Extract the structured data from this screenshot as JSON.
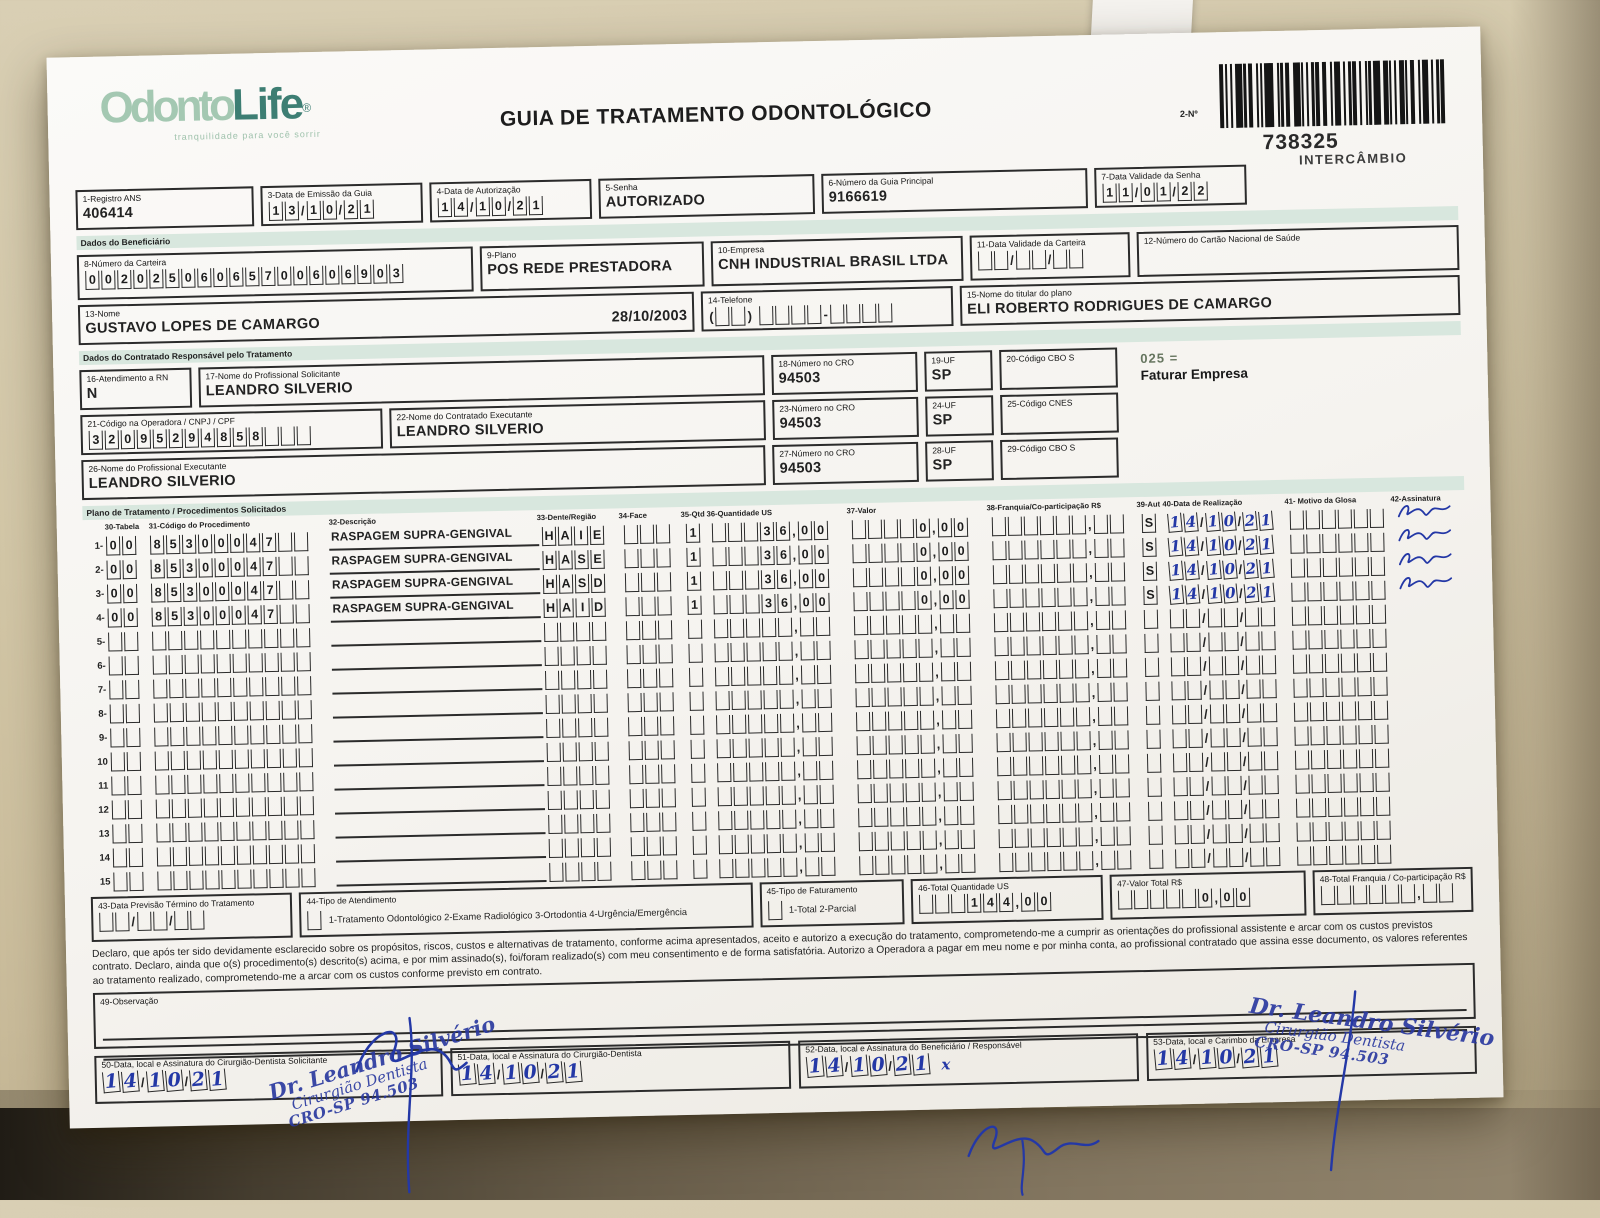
{
  "colors": {
    "logo_green": "#a4c8b2",
    "logo_teal": "#3d7e73",
    "band_mint": "#d8e7de",
    "pen_blue": "#2438a6",
    "ink": "#2b2b2b"
  },
  "brand": {
    "part1": "Odonto",
    "part2": "Life",
    "reg": "®",
    "tagline": "tranquilidade para você sorrir"
  },
  "header": {
    "title": "GUIA DE TRATAMENTO ODONTOLÓGICO",
    "barcode_label": "2-Nº",
    "number": "738325",
    "number_sub": "INTERCÂMBIO"
  },
  "top_fields": {
    "registro_ans": {
      "label": "1-Registro ANS",
      "value": "406414"
    },
    "data_emissao": {
      "label": "3-Data de Emissão da Guia",
      "value": "13/10/21"
    },
    "data_autorizacao": {
      "label": "4-Data de Autorização",
      "value": "14/10/21"
    },
    "senha": {
      "label": "5-Senha",
      "value": "AUTORIZADO"
    },
    "guia_principal": {
      "label": "6-Número da Guia Principal",
      "value": "9166619"
    },
    "validade_senha": {
      "label": "7-Data Validade da Senha",
      "value": "11/01/22"
    }
  },
  "sections": {
    "beneficiario": "Dados do Beneficiário",
    "contratado": "Dados do Contratado Responsável pelo Tratamento",
    "plano": "Plano de Tratamento / Procedimentos Solicitados"
  },
  "beneficiario": {
    "carteira": {
      "label": "8-Número da Carteira",
      "value": "00202506065700606903"
    },
    "plano": {
      "label": "9-Plano",
      "value": "POS REDE PRESTADORA"
    },
    "empresa": {
      "label": "10-Empresa",
      "value": "CNH INDUSTRIAL BRASIL LTDA"
    },
    "validade_carteira": {
      "label": "11-Data Validade da Carteira",
      "value": "__/__/__"
    },
    "cartao_nacional": {
      "label": "12-Número do Cartão Nacional de Saúde",
      "value": ""
    },
    "nome": {
      "label": "13-Nome",
      "value": "GUSTAVO LOPES DE CAMARGO",
      "nascimento": "28/10/2003"
    },
    "telefone": {
      "label": "14-Telefone",
      "value": "(__) ____-____"
    },
    "titular": {
      "label": "15-Nome do titular do plano",
      "value": "ELI ROBERTO RODRIGUES DE CAMARGO"
    }
  },
  "contratado": {
    "atendimento_rn": {
      "label": "16-Atendimento a RN",
      "value": "N"
    },
    "prof_solicitante": {
      "label": "17-Nome do Profissional Solicitante",
      "value": "LEANDRO SILVERIO"
    },
    "cro18": {
      "label": "18-Número no CRO",
      "value": "94503"
    },
    "uf19": {
      "label": "19-UF",
      "value": "SP"
    },
    "cbo20": {
      "label": "20-Código CBO S",
      "value": ""
    },
    "nota_faturamento": {
      "codigo": "025 =",
      "texto": "Faturar Empresa"
    },
    "codigo_operadora": {
      "label": "21-Código na Operadora / CNPJ / CPF",
      "value": "32095294858___"
    },
    "contratado_executante": {
      "label": "22-Nome do Contratado Executante",
      "value": "LEANDRO SILVERIO"
    },
    "cro23": {
      "label": "23-Número no CRO",
      "value": "94503"
    },
    "uf24": {
      "label": "24-UF",
      "value": "SP"
    },
    "cnes25": {
      "label": "25-Código CNES",
      "value": ""
    },
    "prof_executante": {
      "label": "26-Nome do Profissional Executante",
      "value": "LEANDRO SILVERIO"
    },
    "cro27": {
      "label": "27-Número no CRO",
      "value": "94503"
    },
    "uf28": {
      "label": "28-UF",
      "value": "SP"
    },
    "cbo29": {
      "label": "29-Código CBO S",
      "value": ""
    }
  },
  "plan": {
    "headers": [
      "30-Tabela",
      "31-Código do Procedimento",
      "32-Descrição",
      "33-Dente/Região",
      "34-Face",
      "35-Qtd",
      "36-Quantidade US",
      "37-Valor",
      "38-Franquia/Co-participação R$",
      "39-Aut",
      "40-Data de Realização",
      "41- Motivo da Glosa",
      "42-Assinatura"
    ],
    "rows": [
      {
        "n": "1-",
        "tab": "00",
        "cod": "85300047__",
        "desc": "RASPAGEM SUPRA-GENGIVAL",
        "dente": "HAIE",
        "face": "___",
        "qtd": "1",
        "qus": "___36,00",
        "val": "____0,00",
        "fra": "______,__",
        "aut": "S",
        "dt": "14/10/21",
        "glo": "______",
        "signed": true
      },
      {
        "n": "2-",
        "tab": "00",
        "cod": "85300047__",
        "desc": "RASPAGEM SUPRA-GENGIVAL",
        "dente": "HASE",
        "face": "___",
        "qtd": "1",
        "qus": "___36,00",
        "val": "____0,00",
        "fra": "______,__",
        "aut": "S",
        "dt": "14/10/21",
        "glo": "______",
        "signed": true
      },
      {
        "n": "3-",
        "tab": "00",
        "cod": "85300047__",
        "desc": "RASPAGEM SUPRA-GENGIVAL",
        "dente": "HASD",
        "face": "___",
        "qtd": "1",
        "qus": "___36,00",
        "val": "____0,00",
        "fra": "______,__",
        "aut": "S",
        "dt": "14/10/21",
        "glo": "______",
        "signed": true
      },
      {
        "n": "4-",
        "tab": "00",
        "cod": "85300047__",
        "desc": "RASPAGEM SUPRA-GENGIVAL",
        "dente": "HAID",
        "face": "___",
        "qtd": "1",
        "qus": "___36,00",
        "val": "____0,00",
        "fra": "______,__",
        "aut": "S",
        "dt": "14/10/21",
        "glo": "______",
        "signed": true
      },
      {
        "n": "5-",
        "tab": "__",
        "cod": "__________",
        "desc": "",
        "dente": "____",
        "face": "___",
        "qtd": "_",
        "qus": "_____,__",
        "val": "_____,__",
        "fra": "______,__",
        "aut": "_",
        "dt": "__/__/__",
        "glo": "______",
        "signed": false
      },
      {
        "n": "6-",
        "tab": "__",
        "cod": "__________",
        "desc": "",
        "dente": "____",
        "face": "___",
        "qtd": "_",
        "qus": "_____,__",
        "val": "_____,__",
        "fra": "______,__",
        "aut": "_",
        "dt": "__/__/__",
        "glo": "______",
        "signed": false
      },
      {
        "n": "7-",
        "tab": "__",
        "cod": "__________",
        "desc": "",
        "dente": "____",
        "face": "___",
        "qtd": "_",
        "qus": "_____,__",
        "val": "_____,__",
        "fra": "______,__",
        "aut": "_",
        "dt": "__/__/__",
        "glo": "______",
        "signed": false
      },
      {
        "n": "8-",
        "tab": "__",
        "cod": "__________",
        "desc": "",
        "dente": "____",
        "face": "___",
        "qtd": "_",
        "qus": "_____,__",
        "val": "_____,__",
        "fra": "______,__",
        "aut": "_",
        "dt": "__/__/__",
        "glo": "______",
        "signed": false
      },
      {
        "n": "9-",
        "tab": "__",
        "cod": "__________",
        "desc": "",
        "dente": "____",
        "face": "___",
        "qtd": "_",
        "qus": "_____,__",
        "val": "_____,__",
        "fra": "______,__",
        "aut": "_",
        "dt": "__/__/__",
        "glo": "______",
        "signed": false
      },
      {
        "n": "10",
        "tab": "__",
        "cod": "__________",
        "desc": "",
        "dente": "____",
        "face": "___",
        "qtd": "_",
        "qus": "_____,__",
        "val": "_____,__",
        "fra": "______,__",
        "aut": "_",
        "dt": "__/__/__",
        "glo": "______",
        "signed": false
      },
      {
        "n": "11",
        "tab": "__",
        "cod": "__________",
        "desc": "",
        "dente": "____",
        "face": "___",
        "qtd": "_",
        "qus": "_____,__",
        "val": "_____,__",
        "fra": "______,__",
        "aut": "_",
        "dt": "__/__/__",
        "glo": "______",
        "signed": false
      },
      {
        "n": "12",
        "tab": "__",
        "cod": "__________",
        "desc": "",
        "dente": "____",
        "face": "___",
        "qtd": "_",
        "qus": "_____,__",
        "val": "_____,__",
        "fra": "______,__",
        "aut": "_",
        "dt": "__/__/__",
        "glo": "______",
        "signed": false
      },
      {
        "n": "13",
        "tab": "__",
        "cod": "__________",
        "desc": "",
        "dente": "____",
        "face": "___",
        "qtd": "_",
        "qus": "_____,__",
        "val": "_____,__",
        "fra": "______,__",
        "aut": "_",
        "dt": "__/__/__",
        "glo": "______",
        "signed": false
      },
      {
        "n": "14",
        "tab": "__",
        "cod": "__________",
        "desc": "",
        "dente": "____",
        "face": "___",
        "qtd": "_",
        "qus": "_____,__",
        "val": "_____,__",
        "fra": "______,__",
        "aut": "_",
        "dt": "__/__/__",
        "glo": "______",
        "signed": false
      },
      {
        "n": "15",
        "tab": "__",
        "cod": "__________",
        "desc": "",
        "dente": "____",
        "face": "___",
        "qtd": "_",
        "qus": "_____,__",
        "val": "_____,__",
        "fra": "______,__",
        "aut": "_",
        "dt": "__/__/__",
        "glo": "______",
        "signed": false
      }
    ]
  },
  "totals": {
    "termino": {
      "label": "43-Data Previsão Término do Tratamento",
      "value": "__/__/__"
    },
    "tipo_atendimento": {
      "label": "44-Tipo de Atendimento",
      "checkbox": "_",
      "options": "1-Tratamento Odontológico  2-Exame Radiológico  3-Ortodontia  4-Urgência/Emergência"
    },
    "tipo_faturamento": {
      "label": "45-Tipo de Faturamento",
      "checkbox": "_",
      "options": "1-Total  2-Parcial"
    },
    "total_us": {
      "label": "46-Total Quantidade US",
      "value": "___144,00"
    },
    "valor_total": {
      "label": "47-Valor Total R$",
      "value": "_____0,00"
    },
    "total_franquia": {
      "label": "48-Total Franquia / Co-participação R$",
      "value": "______,__"
    }
  },
  "declaration": "Declaro, que após ter sido devidamente esclarecido sobre os propósitos, riscos, custos e alternativas de tratamento, conforme acima apresentados, aceito e autorizo a execução do tratamento, comprometendo-me a cumprir as orientações do profissional assistente e arcar com os custos previstos contrato. Declaro, ainda que o(s) procedimento(s) descrito(s) acima, e por mim assinado(s), foi/foram realizado(s) com meu consentimento e de forma satisfatória. Autorizo a Operadora a pagar em meu nome e por minha conta, ao profissional contratado que assina esse documento, os valores referentes ao tratamento realizado, comprometendo-me a arcar com os custos conforme previsto em contrato.",
  "observacao": {
    "label": "49-Observação"
  },
  "stamp": {
    "line1": "Dr. Leandro Silvério",
    "line2": "Cirurgião Dentista",
    "line3": "CRO-SP 94.503"
  },
  "footer": [
    {
      "label": "50-Data, local e Assinatura do Cirurgião-Dentista Solicitante",
      "date": "14/10/21",
      "mark": ""
    },
    {
      "label": "51-Data, local e Assinatura do Cirurgião-Dentista",
      "date": "14/10/21",
      "mark": ""
    },
    {
      "label": "52-Data, local e Assinatura do Beneficiário / Responsável",
      "date": "14/10/21",
      "mark": "x"
    },
    {
      "label": "53-Data, local e Carimbo da Empresa",
      "date": "14/10/21",
      "mark": ""
    }
  ]
}
